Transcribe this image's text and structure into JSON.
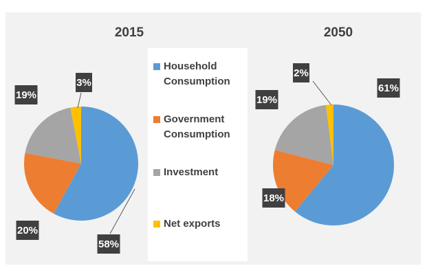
{
  "chart_data": [
    {
      "type": "pie",
      "title": "2015",
      "categories": [
        "Household Consumption",
        "Government Consumption",
        "Investment",
        "Net exports"
      ],
      "values": [
        58,
        20,
        19,
        3
      ],
      "value_labels": [
        "58%",
        "20%",
        "19%",
        "3%"
      ],
      "colors": [
        "#5b9bd5",
        "#ed7d31",
        "#a5a5a5",
        "#ffc000"
      ]
    },
    {
      "type": "pie",
      "title": "2050",
      "categories": [
        "Household Consumption",
        "Government Consumption",
        "Investment",
        "Net exports"
      ],
      "values": [
        61,
        18,
        19,
        2
      ],
      "value_labels": [
        "61%",
        "18%",
        "19%",
        "2%"
      ],
      "colors": [
        "#5b9bd5",
        "#ed7d31",
        "#a5a5a5",
        "#ffc000"
      ]
    }
  ]
}
